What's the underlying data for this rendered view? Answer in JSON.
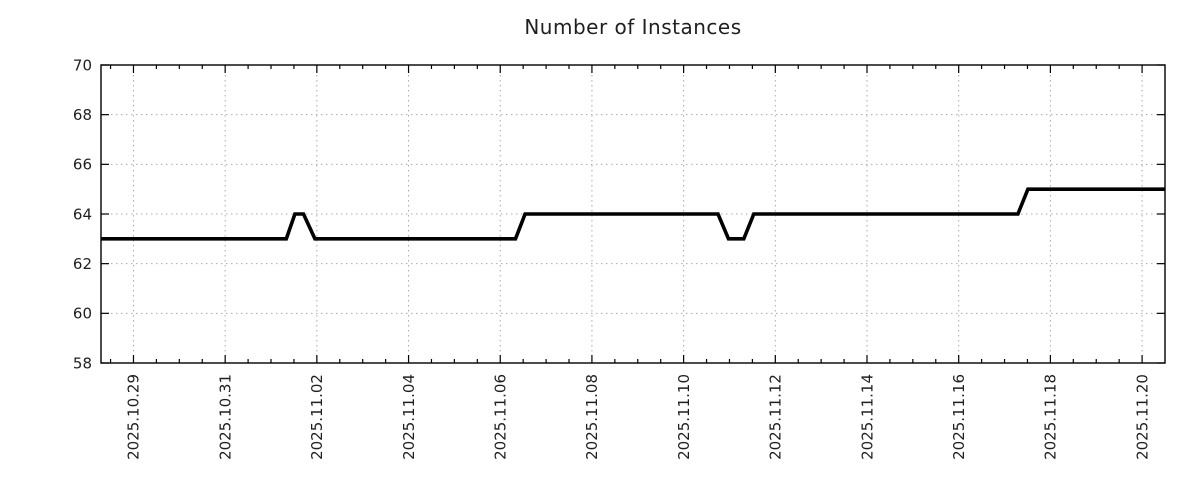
{
  "chart_data": {
    "type": "line",
    "title": "Number of Instances",
    "legend": {
      "show": false
    },
    "grid": {
      "show": true,
      "style": "dotted",
      "color": "#aaaaaa"
    },
    "frame_color": "#000000",
    "background": "#ffffff",
    "text_color": "#1f1f1f",
    "x_axis": {
      "range": [
        "2025-10-28 07:00",
        "2025-11-20 12:00"
      ],
      "major_tick_dates": [
        "2025-10-29",
        "2025-10-31",
        "2025-11-02",
        "2025-11-04",
        "2025-11-06",
        "2025-11-08",
        "2025-11-10",
        "2025-11-12",
        "2025-11-14",
        "2025-11-16",
        "2025-11-18",
        "2025-11-20"
      ],
      "tick_labels": [
        "2025.10.29",
        "2025.10.31",
        "2025.11.02",
        "2025.11.04",
        "2025.11.06",
        "2025.11.08",
        "2025.11.10",
        "2025.11.12",
        "2025.11.14",
        "2025.11.16",
        "2025.11.18",
        "2025.11.20"
      ],
      "minor_tick_hours": 12,
      "label_rotation_deg": -90
    },
    "y_axis": {
      "range": [
        58,
        70
      ],
      "ticks": [
        58,
        60,
        62,
        64,
        66,
        68,
        70
      ],
      "tick_labels": [
        "58",
        "60",
        "62",
        "64",
        "66",
        "68",
        "70"
      ]
    },
    "series": [
      {
        "name": "instances",
        "color": "#000000",
        "line_width": 3.6,
        "points": [
          [
            "2025-10-28 07:00",
            63
          ],
          [
            "2025-11-01 08:00",
            63
          ],
          [
            "2025-11-01 12:30",
            64
          ],
          [
            "2025-11-01 17:00",
            64
          ],
          [
            "2025-11-01 23:00",
            63
          ],
          [
            "2025-11-06 08:00",
            63
          ],
          [
            "2025-11-06 13:00",
            64
          ],
          [
            "2025-11-10 18:00",
            64
          ],
          [
            "2025-11-10 23:30",
            63
          ],
          [
            "2025-11-11 07:30",
            63
          ],
          [
            "2025-11-11 12:45",
            64
          ],
          [
            "2025-11-17 07:00",
            64
          ],
          [
            "2025-11-17 12:15",
            65
          ],
          [
            "2025-11-20 12:00",
            65
          ]
        ]
      }
    ]
  }
}
